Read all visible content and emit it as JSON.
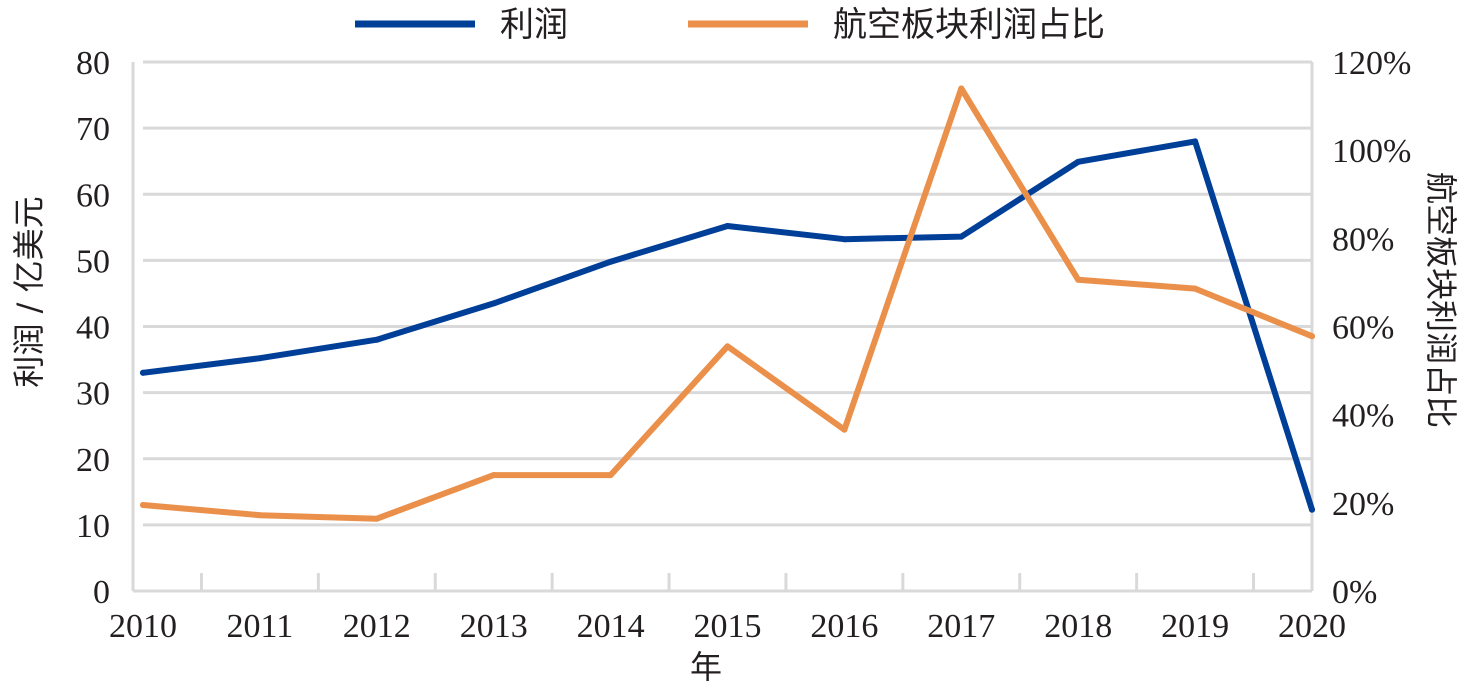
{
  "chart_data": {
    "type": "line",
    "title": "",
    "xlabel": "年",
    "ylabel": "利润 / 亿美元",
    "ylabel_right": "航空板块利润占比",
    "x": [
      "2010",
      "2011",
      "2012",
      "2013",
      "2014",
      "2015",
      "2016",
      "2017",
      "2018",
      "2019",
      "2020"
    ],
    "ylim": [
      0,
      80
    ],
    "yticks": [
      "0",
      "10",
      "20",
      "30",
      "40",
      "50",
      "60",
      "70",
      "80"
    ],
    "ylim_right": [
      0,
      120
    ],
    "yticks_right": [
      "0%",
      "20%",
      "40%",
      "60%",
      "80%",
      "100%",
      "120%"
    ],
    "grid": true,
    "legend_position": "top-center",
    "series": [
      {
        "name": "利润",
        "axis": "left",
        "color": "#003f98",
        "values": [
          33,
          35.2,
          38,
          43.5,
          49.8,
          55.2,
          53.2,
          53.6,
          64.9,
          68,
          12.3
        ]
      },
      {
        "name": "航空板块利润占比",
        "axis": "right",
        "color": "#ea904a",
        "values": [
          19.5,
          17.2,
          16.4,
          26.3,
          26.3,
          55.5,
          36.6,
          114,
          70.6,
          68.6,
          57.8
        ]
      }
    ]
  }
}
